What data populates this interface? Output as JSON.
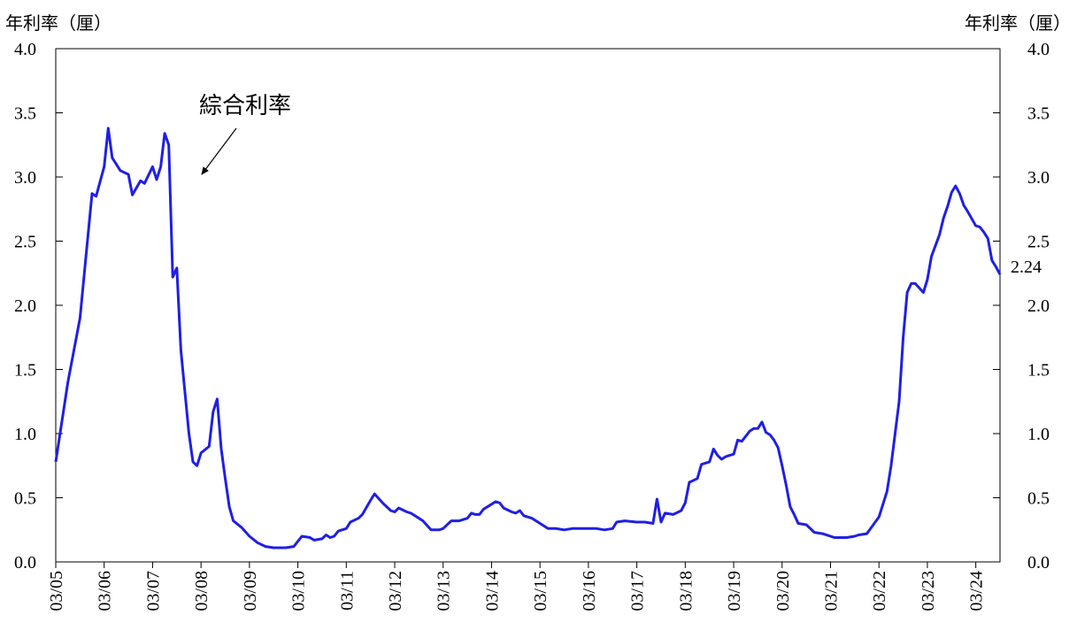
{
  "chart_data": {
    "type": "line",
    "y_label": "年利率（厘）",
    "y2_label": "年利率（厘）",
    "annotation": "綜合利率",
    "ylim": [
      0,
      4
    ],
    "yticks": [
      {
        "value": 0,
        "label": "0.0"
      },
      0.5,
      {
        "value": 1,
        "label": "1.0"
      },
      1.5,
      {
        "value": 2,
        "label": "2.0"
      },
      2.5,
      {
        "value": 3,
        "label": "3.0"
      },
      3.5,
      {
        "value": 4,
        "label": "4.0"
      }
    ],
    "y2lim": [
      0,
      4
    ],
    "y2ticks": [
      {
        "value": 0,
        "label": "0.0"
      },
      0.5,
      {
        "value": 1,
        "label": "1.0"
      },
      1.5,
      {
        "value": 2,
        "label": "2.0"
      },
      2.5,
      {
        "value": 3,
        "label": "3.0"
      },
      3.5,
      {
        "value": 4,
        "label": "4.0"
      }
    ],
    "xticks": [
      "03/05",
      "03/06",
      "03/07",
      "03/08",
      "03/09",
      "03/10",
      "03/11",
      "03/12",
      "03/13",
      "03/14",
      "03/15",
      "03/16",
      "03/17",
      "03/18",
      "03/19",
      "03/20",
      "03/21",
      "03/22",
      "03/23",
      "03/24"
    ],
    "series": [
      {
        "name": "綜合利率",
        "color": "#1f1fe6",
        "x": [
          "03/05",
          "06/05",
          "09/05",
          "12/05",
          "01/06",
          "03/06",
          "04/06",
          "05/06",
          "07/06",
          "09/06",
          "10/06",
          "12/06",
          "01/07",
          "03/07",
          "04/07",
          "05/07",
          "06/07",
          "07/07",
          "08/07",
          "09/07",
          "10/07",
          "12/07",
          "01/08",
          "02/08",
          "03/08",
          "05/08",
          "06/08",
          "07/08",
          "08/08",
          "09/08",
          "10/08",
          "11/08",
          "01/09",
          "03/09",
          "05/09",
          "07/09",
          "09/09",
          "12/09",
          "02/10",
          "04/10",
          "06/10",
          "07/10",
          "09/10",
          "10/10",
          "11/10",
          "12/10",
          "01/11",
          "03/11",
          "04/11",
          "06/11",
          "07/11",
          "09/11",
          "10/11",
          "12/11",
          "02/12",
          "03/12",
          "04/12",
          "06/12",
          "07/12",
          "09/12",
          "10/12",
          "12/12",
          "02/13",
          "03/13",
          "05/13",
          "07/13",
          "09/13",
          "10/13",
          "11/13",
          "12/13",
          "01/14",
          "03/14",
          "04/14",
          "05/14",
          "06/14",
          "08/14",
          "09/14",
          "10/14",
          "11/14",
          "01/15",
          "03/15",
          "05/15",
          "07/15",
          "09/15",
          "11/15",
          "03/16",
          "05/16",
          "07/16",
          "09/16",
          "10/16",
          "12/16",
          "03/17",
          "05/17",
          "07/17",
          "08/17",
          "09/17",
          "10/17",
          "12/17",
          "02/18",
          "03/18",
          "04/18",
          "06/18",
          "07/18",
          "09/18",
          "10/18",
          "11/18",
          "12/18",
          "01/19",
          "03/19",
          "04/19",
          "05/19",
          "07/19",
          "08/19",
          "09/19",
          "10/19",
          "11/19",
          "12/19",
          "01/20",
          "02/20",
          "03/20",
          "04/20",
          "05/20",
          "06/20",
          "07/20",
          "09/20",
          "11/20",
          "01/21",
          "04/21",
          "07/21",
          "09/21",
          "10/21",
          "12/21",
          "03/22",
          "05/22",
          "06/22",
          "08/22",
          "09/22",
          "10/22",
          "11/22",
          "12/22",
          "02/23",
          "03/23",
          "04/23",
          "06/23",
          "07/23",
          "08/23",
          "09/23",
          "10/23",
          "11/23",
          "12/23",
          "01/24",
          "03/24",
          "04/24",
          "05/24",
          "06/24",
          "07/24",
          "08/24",
          "09/24"
        ],
        "values": [
          0.78,
          1.4,
          1.9,
          2.87,
          2.85,
          3.08,
          3.38,
          3.15,
          3.05,
          3.02,
          2.86,
          2.97,
          2.95,
          3.08,
          2.98,
          3.08,
          3.34,
          3.25,
          2.22,
          2.29,
          1.65,
          1.0,
          0.78,
          0.75,
          0.85,
          0.9,
          1.17,
          1.27,
          0.88,
          0.65,
          0.43,
          0.32,
          0.27,
          0.2,
          0.15,
          0.12,
          0.11,
          0.11,
          0.12,
          0.2,
          0.19,
          0.17,
          0.18,
          0.21,
          0.19,
          0.2,
          0.24,
          0.26,
          0.31,
          0.34,
          0.37,
          0.48,
          0.53,
          0.46,
          0.4,
          0.39,
          0.42,
          0.39,
          0.38,
          0.34,
          0.32,
          0.25,
          0.25,
          0.26,
          0.32,
          0.32,
          0.34,
          0.38,
          0.37,
          0.37,
          0.41,
          0.45,
          0.47,
          0.46,
          0.42,
          0.39,
          0.38,
          0.4,
          0.36,
          0.34,
          0.3,
          0.26,
          0.26,
          0.25,
          0.26,
          0.26,
          0.26,
          0.25,
          0.26,
          0.31,
          0.32,
          0.31,
          0.31,
          0.3,
          0.49,
          0.31,
          0.38,
          0.37,
          0.4,
          0.46,
          0.62,
          0.65,
          0.76,
          0.78,
          0.88,
          0.83,
          0.8,
          0.82,
          0.84,
          0.95,
          0.94,
          1.02,
          1.04,
          1.04,
          1.09,
          1.01,
          0.99,
          0.95,
          0.89,
          0.75,
          0.6,
          0.43,
          0.37,
          0.3,
          0.29,
          0.23,
          0.22,
          0.19,
          0.19,
          0.2,
          0.21,
          0.22,
          0.35,
          0.55,
          0.75,
          1.25,
          1.75,
          2.1,
          2.17,
          2.17,
          2.1,
          2.2,
          2.38,
          2.55,
          2.68,
          2.77,
          2.88,
          2.93,
          2.87,
          2.78,
          2.73,
          2.62,
          2.61,
          2.57,
          2.52,
          2.35,
          2.3,
          2.24
        ]
      }
    ]
  }
}
